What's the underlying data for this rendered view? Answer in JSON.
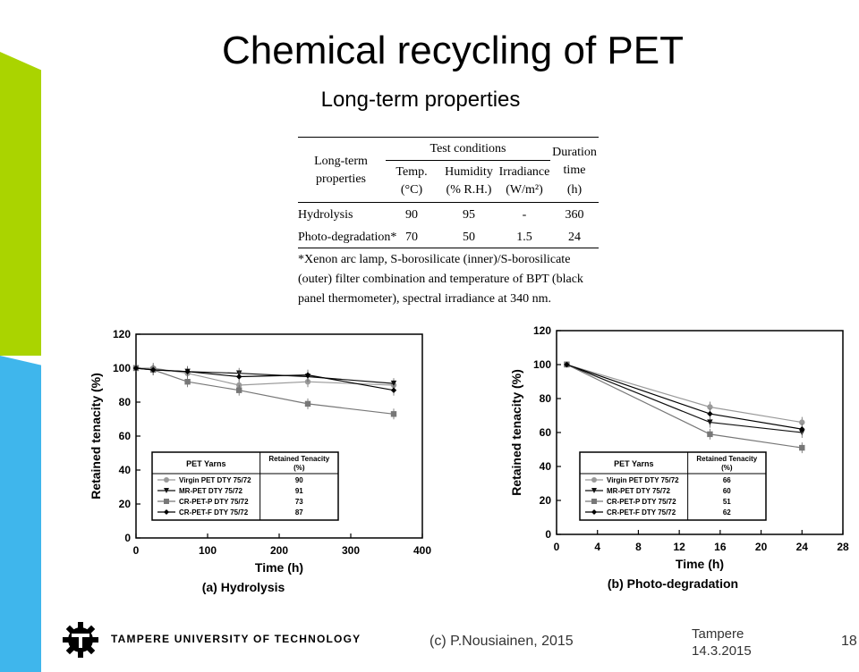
{
  "slide": {
    "title": "Chemical recycling of PET",
    "subtitle": "Long-term properties",
    "colors": {
      "green": "#aad400",
      "blue": "#3fb6ec"
    }
  },
  "table": {
    "col_long_term": "Long-term",
    "col_properties": "properties",
    "test_conditions": "Test conditions",
    "temp": "Temp.",
    "temp_unit": "(°C)",
    "humidity": "Humidity",
    "humidity_unit": "(% R.H.)",
    "irradiance": "Irradiance",
    "irradiance_unit": "(W/m²)",
    "duration": "Duration",
    "duration2": "time",
    "duration_unit": "(h)",
    "rows": [
      {
        "name": "Hydrolysis",
        "temp": "90",
        "humidity": "95",
        "irradiance": "-",
        "time": "360"
      },
      {
        "name": "Photo-degradation*",
        "temp": "70",
        "humidity": "50",
        "irradiance": "1.5",
        "time": "24"
      }
    ],
    "footnote": "*Xenon arc lamp, S-borosilicate (inner)/S-borosilicate (outer) filter combination and temperature of BPT (black panel thermometer), spectral irradiance at 340 nm."
  },
  "chart_data": [
    {
      "type": "line",
      "caption": "(a) Hydrolysis",
      "xlabel": "Time (h)",
      "ylabel": "Retained tenacity (%)",
      "xlim": [
        0,
        400
      ],
      "ylim": [
        0,
        120
      ],
      "xticks": [
        "0",
        "100",
        "200",
        "300",
        "400"
      ],
      "yticks": [
        "0",
        "20",
        "40",
        "60",
        "80",
        "100",
        "120"
      ],
      "legend_header": [
        "PET Yarns",
        "Retained Tenacity (%)"
      ],
      "series": [
        {
          "name": "Virgin PET DTY 75/72",
          "retained": "90",
          "marker": "circle",
          "color": "#999999",
          "x": [
            0,
            24,
            72,
            144,
            240,
            360
          ],
          "y": [
            100,
            100,
            97,
            90,
            92,
            90
          ]
        },
        {
          "name": "MR-PET DTY 75/72",
          "retained": "91",
          "marker": "triangle",
          "color": "#111111",
          "x": [
            0,
            24,
            72,
            144,
            240,
            360
          ],
          "y": [
            100,
            99,
            98,
            97,
            95,
            91
          ]
        },
        {
          "name": "CR-PET-P DTY 75/72",
          "retained": "73",
          "marker": "square",
          "color": "#777777",
          "x": [
            0,
            24,
            72,
            144,
            240,
            360
          ],
          "y": [
            100,
            99,
            92,
            87,
            79,
            73
          ]
        },
        {
          "name": "CR-PET-F DTY 75/72",
          "retained": "87",
          "marker": "diamond",
          "color": "#000000",
          "x": [
            0,
            24,
            72,
            144,
            240,
            360
          ],
          "y": [
            100,
            99,
            98,
            95,
            96,
            87
          ]
        }
      ]
    },
    {
      "type": "line",
      "caption": "(b) Photo-degradation",
      "xlabel": "Time (h)",
      "ylabel": "Retained tenacity (%)",
      "xlim": [
        0,
        28
      ],
      "ylim": [
        0,
        120
      ],
      "xticks": [
        "0",
        "4",
        "8",
        "12",
        "16",
        "20",
        "24",
        "28"
      ],
      "yticks": [
        "0",
        "20",
        "40",
        "60",
        "80",
        "100",
        "120"
      ],
      "legend_header": [
        "PET Yarns",
        "Retained Tenacity (%)"
      ],
      "series": [
        {
          "name": "Virgin PET DTY 75/72",
          "retained": "66",
          "marker": "circle",
          "color": "#999999",
          "x": [
            1,
            15,
            24
          ],
          "y": [
            100,
            75,
            66
          ]
        },
        {
          "name": "MR-PET DTY 75/72",
          "retained": "60",
          "marker": "triangle",
          "color": "#111111",
          "x": [
            1,
            15,
            24
          ],
          "y": [
            100,
            66,
            60
          ]
        },
        {
          "name": "CR-PET-P DTY 75/72",
          "retained": "51",
          "marker": "square",
          "color": "#777777",
          "x": [
            1,
            15,
            24
          ],
          "y": [
            100,
            59,
            51
          ]
        },
        {
          "name": "CR-PET-F DTY 75/72",
          "retained": "62",
          "marker": "diamond",
          "color": "#000000",
          "x": [
            1,
            15,
            24
          ],
          "y": [
            100,
            71,
            62
          ]
        }
      ]
    }
  ],
  "footer": {
    "university": "TAMPERE UNIVERSITY OF TECHNOLOGY",
    "copyright": "(c) P.Nousiainen,  2015",
    "place": "Tampere",
    "date": "14.3.2015",
    "page": "18",
    "logo_icon": "tut-gear-logo-icon"
  }
}
